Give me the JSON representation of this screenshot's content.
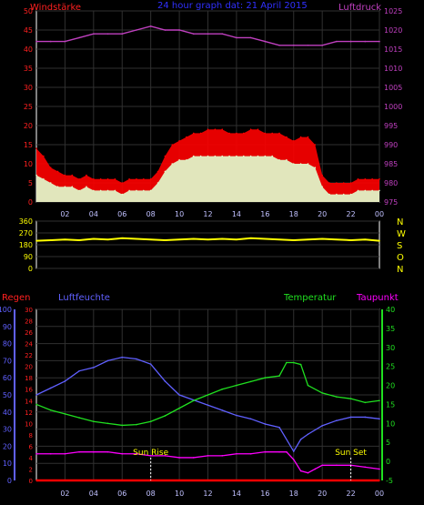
{
  "chart_data": [
    {
      "type": "line",
      "title": "24 hour graph dat:  21 April 2015",
      "left_axis_title": "Windstärke",
      "right_axis_title": "Luftdruck",
      "left_ticks": [
        0,
        5,
        10,
        15,
        20,
        25,
        30,
        35,
        40,
        45,
        50
      ],
      "right_ticks": [
        975,
        980,
        985,
        990,
        995,
        1000,
        1005,
        1010,
        1015,
        1020,
        1025
      ],
      "x_ticks": [
        "02",
        "04",
        "06",
        "08",
        "10",
        "12",
        "14",
        "16",
        "18",
        "20",
        "22",
        "00"
      ],
      "ylim": [
        0,
        50
      ],
      "ylim_right": [
        975,
        1025
      ],
      "series": [
        {
          "name": "Windstärke",
          "color": "#ff0000",
          "x": [
            0,
            0.5,
            1,
            1.5,
            2,
            2.5,
            3,
            3.5,
            4,
            4.5,
            5,
            5.5,
            6,
            6.5,
            7,
            7.5,
            8,
            8.5,
            9,
            9.5,
            10,
            10.5,
            11,
            11.5,
            12,
            12.5,
            13,
            13.5,
            14,
            14.5,
            15,
            15.5,
            16,
            16.5,
            17,
            17.5,
            18,
            18.5,
            19,
            19.5,
            20,
            20.5,
            21,
            21.5,
            22,
            22.5,
            23,
            23.5,
            24
          ],
          "values": [
            14,
            12,
            9,
            8,
            7,
            7,
            6,
            7,
            6,
            6,
            6,
            6,
            5,
            6,
            6,
            6,
            6,
            8,
            12,
            15,
            16,
            17,
            18,
            18,
            19,
            19,
            19,
            18,
            18,
            18,
            19,
            19,
            18,
            18,
            18,
            17,
            16,
            17,
            17,
            15,
            7,
            5,
            5,
            5,
            5,
            6,
            6,
            6,
            6
          ]
        },
        {
          "name": "gust",
          "color": "#e0ffd0",
          "x": [
            0,
            0.5,
            1,
            1.5,
            2,
            2.5,
            3,
            3.5,
            4,
            4.5,
            5,
            5.5,
            6,
            6.5,
            7,
            7.5,
            8,
            8.5,
            9,
            9.5,
            10,
            10.5,
            11,
            11.5,
            12,
            12.5,
            13,
            13.5,
            14,
            14.5,
            15,
            15.5,
            16,
            16.5,
            17,
            17.5,
            18,
            18.5,
            19,
            19.5,
            20,
            20.5,
            21,
            21.5,
            22,
            22.5,
            23,
            23.5,
            24
          ],
          "values": [
            7,
            6,
            5,
            4,
            4,
            4,
            3,
            4,
            3,
            3,
            3,
            3,
            2,
            3,
            3,
            3,
            3,
            5,
            8,
            10,
            11,
            11,
            12,
            12,
            12,
            12,
            12,
            12,
            12,
            12,
            12,
            12,
            12,
            12,
            11,
            11,
            10,
            10,
            10,
            9,
            4,
            2,
            2,
            2,
            2,
            3,
            3,
            3,
            3
          ]
        },
        {
          "name": "Luftdruck",
          "color": "#c040c0",
          "axis": "right",
          "x": [
            0,
            1,
            2,
            3,
            4,
            5,
            6,
            7,
            8,
            9,
            10,
            11,
            12,
            13,
            14,
            15,
            16,
            17,
            18,
            19,
            20,
            21,
            22,
            23,
            24
          ],
          "values": [
            1017,
            1017,
            1017,
            1018,
            1019,
            1019,
            1019,
            1020,
            1021,
            1020,
            1020,
            1019,
            1019,
            1019,
            1018,
            1018,
            1017,
            1016,
            1016,
            1016,
            1016,
            1017,
            1017,
            1017,
            1017
          ]
        }
      ]
    },
    {
      "type": "line",
      "left_ticks": [
        0,
        90,
        180,
        270,
        360
      ],
      "right_labels": [
        "N",
        "W",
        "S",
        "O",
        "N"
      ],
      "ylim": [
        0,
        360
      ],
      "x_ticks": [],
      "series": [
        {
          "name": "direction",
          "color": "#ffff00",
          "x": [
            0,
            1,
            2,
            3,
            4,
            5,
            6,
            7,
            8,
            9,
            10,
            11,
            12,
            13,
            14,
            15,
            16,
            17,
            18,
            19,
            20,
            21,
            22,
            23,
            24
          ],
          "values": [
            210,
            215,
            220,
            215,
            225,
            220,
            230,
            225,
            220,
            215,
            220,
            225,
            220,
            225,
            220,
            230,
            225,
            220,
            215,
            220,
            225,
            220,
            215,
            220,
            210
          ]
        }
      ]
    },
    {
      "type": "line",
      "label_regen": "Regen",
      "label_luftfeuchte": "Luftfeuchte",
      "label_temperatur": "Temperatur",
      "label_taupunkt": "Taupunkt",
      "humidity_ticks": [
        0,
        10,
        20,
        30,
        40,
        50,
        60,
        70,
        80,
        90,
        100
      ],
      "rain_ticks": [
        0,
        2,
        4,
        6,
        8,
        10,
        12,
        14,
        16,
        18,
        20,
        22,
        24,
        26,
        28,
        30
      ],
      "temp_ticks": [
        -5,
        0,
        5,
        10,
        15,
        20,
        25,
        30,
        35,
        40
      ],
      "x_ticks": [
        "02",
        "04",
        "06",
        "08",
        "10",
        "12",
        "14",
        "16",
        "18",
        "20",
        "22",
        "00"
      ],
      "annotations": [
        {
          "text": "Sun Rise",
          "x": 8.0
        },
        {
          "text": "Sun Set",
          "x": 22.0
        }
      ],
      "series": [
        {
          "name": "Luftfeuchte",
          "color": "#6060ff",
          "axis": "humidity",
          "x": [
            0,
            1,
            2,
            3,
            4,
            5,
            6,
            7,
            8,
            9,
            10,
            11,
            12,
            13,
            14,
            15,
            16,
            17,
            18,
            18.5,
            19,
            20,
            21,
            22,
            23,
            24
          ],
          "values": [
            50,
            54,
            58,
            64,
            66,
            70,
            72,
            71,
            68,
            58,
            50,
            47,
            44,
            41,
            38,
            36,
            33,
            31,
            17,
            24,
            27,
            32,
            35,
            37,
            37,
            36
          ]
        },
        {
          "name": "Temperatur",
          "color": "#20e020",
          "axis": "temp",
          "x": [
            0,
            1,
            2,
            3,
            4,
            5,
            6,
            7,
            8,
            9,
            10,
            11,
            12,
            13,
            14,
            15,
            16,
            17,
            17.5,
            18,
            18.5,
            19,
            20,
            21,
            22,
            23,
            24
          ],
          "values": [
            15,
            13.5,
            12.5,
            11.5,
            10.5,
            10,
            9.5,
            9.7,
            10.5,
            12,
            14,
            16,
            17.5,
            19,
            20,
            21,
            22,
            22.5,
            26,
            26,
            25.5,
            20,
            18,
            17,
            16.5,
            15.5,
            16
          ]
        },
        {
          "name": "Taupunkt",
          "color": "#ff00ff",
          "axis": "temp",
          "x": [
            0,
            1,
            2,
            3,
            4,
            5,
            6,
            7,
            8,
            9,
            10,
            11,
            12,
            13,
            14,
            15,
            16,
            17,
            17.5,
            18,
            18.5,
            19,
            19.5,
            20,
            21,
            22,
            23,
            24
          ],
          "values": [
            2,
            2,
            2,
            2.5,
            2.5,
            2.5,
            2,
            2,
            1.5,
            1.5,
            1,
            1,
            1.5,
            1.5,
            2,
            2,
            2.5,
            2.5,
            2.5,
            0.5,
            -2.5,
            -3,
            -2,
            -1,
            -1,
            -1,
            -1.5,
            -2
          ]
        },
        {
          "name": "Regen",
          "color": "#ff0000",
          "axis": "rain",
          "x": [
            0,
            24
          ],
          "values": [
            0,
            0
          ]
        }
      ]
    }
  ]
}
